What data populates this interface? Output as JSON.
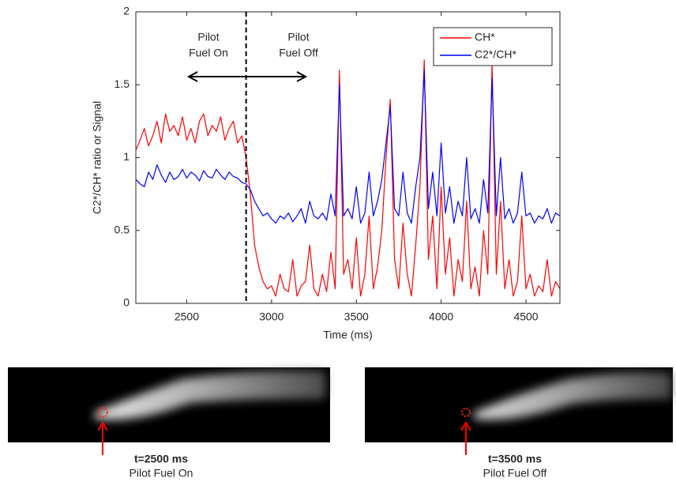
{
  "chart_data": {
    "type": "line",
    "xlabel": "Time (ms)",
    "ylabel": "C2*/CH* ratio or Signal",
    "x": [
      2200,
      2225,
      2250,
      2275,
      2300,
      2325,
      2350,
      2375,
      2400,
      2425,
      2450,
      2475,
      2500,
      2525,
      2550,
      2575,
      2600,
      2625,
      2650,
      2675,
      2700,
      2725,
      2750,
      2775,
      2800,
      2825,
      2850,
      2875,
      2900,
      2925,
      2950,
      2975,
      3000,
      3025,
      3050,
      3075,
      3100,
      3125,
      3150,
      3175,
      3200,
      3225,
      3250,
      3275,
      3300,
      3325,
      3350,
      3375,
      3400,
      3425,
      3450,
      3475,
      3500,
      3525,
      3550,
      3575,
      3600,
      3625,
      3650,
      3675,
      3700,
      3725,
      3750,
      3775,
      3800,
      3825,
      3850,
      3875,
      3900,
      3925,
      3950,
      3975,
      4000,
      4025,
      4050,
      4075,
      4100,
      4125,
      4150,
      4175,
      4200,
      4225,
      4250,
      4275,
      4300,
      4325,
      4350,
      4375,
      4400,
      4425,
      4450,
      4475,
      4500,
      4525,
      4550,
      4575,
      4600,
      4625,
      4650,
      4675,
      4700
    ],
    "series": [
      {
        "name": "CH*",
        "color": "#ff0000",
        "values": [
          1.05,
          1.12,
          1.2,
          1.08,
          1.15,
          1.25,
          1.1,
          1.3,
          1.18,
          1.22,
          1.15,
          1.28,
          1.12,
          1.2,
          1.1,
          1.25,
          1.3,
          1.15,
          1.22,
          1.18,
          1.28,
          1.12,
          1.2,
          1.25,
          1.1,
          1.15,
          1.0,
          0.75,
          0.4,
          0.25,
          0.15,
          0.1,
          0.12,
          0.05,
          0.2,
          0.1,
          0.08,
          0.3,
          0.05,
          0.12,
          0.15,
          0.4,
          0.1,
          0.05,
          0.2,
          0.08,
          0.35,
          0.1,
          1.6,
          0.2,
          0.3,
          0.1,
          0.45,
          0.05,
          0.2,
          0.6,
          0.1,
          0.25,
          0.5,
          1.0,
          1.4,
          0.3,
          0.1,
          0.55,
          0.2,
          0.05,
          0.4,
          0.8,
          1.67,
          0.3,
          0.6,
          0.1,
          0.8,
          0.2,
          0.45,
          0.05,
          0.3,
          0.15,
          0.7,
          0.1,
          0.25,
          0.05,
          0.5,
          0.2,
          1.65,
          0.2,
          0.7,
          0.1,
          0.3,
          0.05,
          0.15,
          0.6,
          0.1,
          0.2,
          0.05,
          0.12,
          0.08,
          0.3,
          0.05,
          0.15,
          0.1
        ]
      },
      {
        "name": "C2*/CH*",
        "color": "#0000ff",
        "values": [
          0.85,
          0.82,
          0.8,
          0.9,
          0.85,
          0.95,
          0.88,
          0.83,
          0.9,
          0.85,
          0.87,
          0.92,
          0.86,
          0.9,
          0.88,
          0.84,
          0.91,
          0.87,
          0.86,
          0.92,
          0.88,
          0.85,
          0.9,
          0.87,
          0.86,
          0.83,
          0.82,
          0.78,
          0.7,
          0.65,
          0.6,
          0.62,
          0.58,
          0.55,
          0.6,
          0.58,
          0.62,
          0.56,
          0.6,
          0.65,
          0.55,
          0.7,
          0.6,
          0.58,
          0.62,
          0.57,
          0.75,
          0.6,
          1.5,
          0.6,
          0.65,
          0.58,
          0.8,
          0.55,
          0.62,
          0.9,
          0.6,
          0.7,
          0.85,
          1.1,
          1.35,
          0.65,
          0.6,
          0.9,
          0.62,
          0.55,
          0.8,
          1.0,
          1.6,
          0.65,
          0.9,
          0.6,
          1.1,
          0.62,
          0.8,
          0.55,
          0.7,
          0.6,
          1.0,
          0.58,
          0.65,
          0.55,
          0.85,
          0.62,
          1.55,
          0.6,
          1.0,
          0.58,
          0.65,
          0.55,
          0.62,
          0.9,
          0.6,
          0.62,
          0.55,
          0.6,
          0.58,
          0.65,
          0.55,
          0.62,
          0.6
        ]
      }
    ],
    "xlim": [
      2200,
      4700
    ],
    "xticks": [
      2500,
      3000,
      3500,
      4000,
      4500
    ],
    "ylim": [
      0,
      2
    ],
    "yticks": [
      0,
      0.5,
      1,
      1.5,
      2
    ],
    "vline": 2850,
    "annotations": [
      [
        "Pilot",
        "Fuel On"
      ],
      [
        "Pilot",
        "Fuel Off"
      ]
    ],
    "legend": "upper right"
  },
  "images": [
    {
      "time": "t=2500 ms",
      "label": "Pilot Fuel On"
    },
    {
      "time": "t=3500 ms",
      "label": "Pilot Fuel Off"
    }
  ]
}
